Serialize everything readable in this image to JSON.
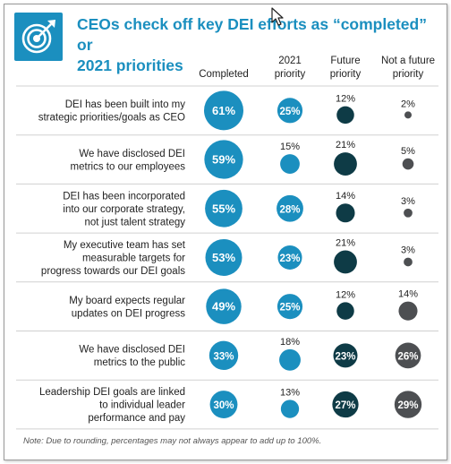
{
  "header": {
    "title_line1": "CEOs check off key DEI efforts as “completed” or",
    "title_line2": "2021 priorities",
    "logo_icon": "target-arrow-icon",
    "accent_color": "#1b8fbf"
  },
  "note": "Note: Due to rounding, percentages may not always appear to add up to 100%.",
  "chart_data": {
    "type": "table",
    "columns": [
      {
        "line1": "Completed",
        "line2": "",
        "color": "#1b8fbf"
      },
      {
        "line1": "2021",
        "line2": "priority",
        "color": "#1b8fbf"
      },
      {
        "line1": "Future",
        "line2": "priority",
        "color": "#0e3b46"
      },
      {
        "line1": "Not a future",
        "line2": "priority",
        "color": "#4d4f52"
      }
    ],
    "rows": [
      {
        "label": [
          "DEI has been built into my",
          "strategic priorities/goals as CEO"
        ],
        "values": [
          61,
          25,
          12,
          2
        ]
      },
      {
        "label": [
          "We have disclosed DEI",
          "metrics to our employees"
        ],
        "values": [
          59,
          15,
          21,
          5
        ]
      },
      {
        "label": [
          "DEI has been incorporated",
          "into our corporate strategy,",
          "not just talent strategy"
        ],
        "values": [
          55,
          28,
          14,
          3
        ]
      },
      {
        "label": [
          "My executive team has set",
          "measurable targets for",
          "progress towards our DEI goals"
        ],
        "values": [
          53,
          23,
          21,
          3
        ]
      },
      {
        "label": [
          "My board expects regular",
          "updates on DEI progress"
        ],
        "values": [
          49,
          25,
          12,
          14
        ]
      },
      {
        "label": [
          "We have disclosed DEI",
          "metrics to the public"
        ],
        "values": [
          33,
          18,
          23,
          26
        ]
      },
      {
        "label": [
          "Leadership DEI goals are linked",
          "to individual leader",
          "performance and pay"
        ],
        "values": [
          30,
          13,
          27,
          29
        ]
      }
    ]
  }
}
